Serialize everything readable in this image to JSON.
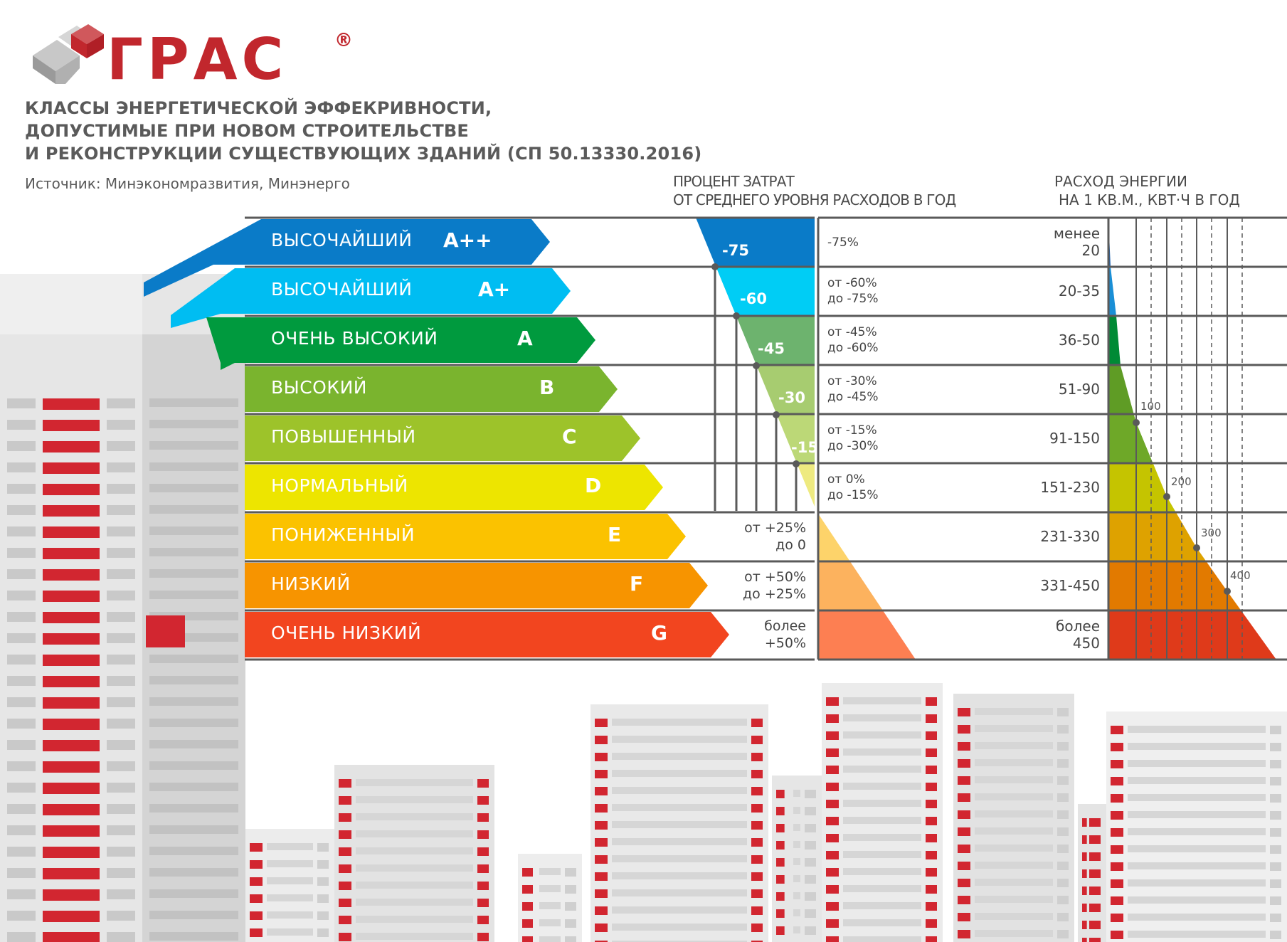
{
  "logo": {
    "text": "ГРАС",
    "registered": "®"
  },
  "title": {
    "lines": [
      "КЛАССЫ ЭНЕРГЕТИЧЕСКОЙ ЭФФЕКРИВНОСТИ,",
      "ДОПУСТИМЫЕ ПРИ НОВОМ СТРОИТЕЛЬСТВЕ",
      "И РЕКОНСТРУКЦИИ СУЩЕСТВУЮЩИХ ЗДАНИЙ (СП 50.13330.2016)"
    ],
    "source": "Источник: Минэкономразвития, Минэнерго"
  },
  "headers": {
    "percent": [
      "ПРОЦЕНТ ЗАТРАТ",
      "ОТ СРЕДНЕГО УРОВНЯ РАСХОДОВ В ГОД"
    ],
    "energy": [
      "РАСХОД ЭНЕРГИИ",
      "НА 1 КВ.М., КВТ·Ч В ГОД"
    ]
  },
  "rows": [
    {
      "label": "ВЫСОЧАЙШИЙ",
      "letter": "A++",
      "color": "#0a7bc8",
      "mid_color": "#0a7bc8",
      "chart_color": "#1b63b4",
      "pct": [
        "-75%"
      ],
      "value": [
        "менее",
        "20"
      ],
      "marker": "-75"
    },
    {
      "label": "ВЫСОЧАЙШИЙ",
      "letter": "A+",
      "color": "#00bdf2",
      "mid_color": "#00cdf5",
      "chart_color": "#1a8fd6",
      "pct": [
        "от -60%",
        "до -75%"
      ],
      "value": [
        "20-35"
      ],
      "marker": "-60"
    },
    {
      "label": "ОЧЕНЬ ВЫСОКИЙ",
      "letter": "A",
      "color": "#009a3e",
      "mid_color": "#6db36e",
      "chart_color": "#008a35",
      "pct": [
        "от -45%",
        "до -60%"
      ],
      "value": [
        "36-50"
      ],
      "marker": "-45"
    },
    {
      "label": "ВЫСОКИЙ",
      "letter": "B",
      "color": "#7ab42e",
      "mid_color": "#a7cc70",
      "chart_color": "#5f9c25",
      "pct": [
        "от -30%",
        "до -45%"
      ],
      "value": [
        "51-90"
      ],
      "marker": "-30"
    },
    {
      "label": "ПОВЫШЕННЫЙ",
      "letter": "C",
      "color": "#9dc32a",
      "mid_color": "#bcd877",
      "chart_color": "#6ea828",
      "pct": [
        "от -15%",
        "до -30%"
      ],
      "value": [
        "91-150"
      ],
      "marker": "-15"
    },
    {
      "label": "НОРМАЛЬНЫЙ",
      "letter": "D",
      "color": "#ede500",
      "mid_color": "#eeea80",
      "chart_color": "#c5c400",
      "pct": [
        "от 0%",
        "до -15%"
      ],
      "value": [
        "151-230"
      ]
    },
    {
      "label": "ПОНИЖЕННЫЙ",
      "letter": "E",
      "color": "#fbc200",
      "mid_color": "#fdd36a",
      "chart_color": "#dea200",
      "mid_text": [
        "от +25%",
        "до 0"
      ],
      "value": [
        "231-330"
      ]
    },
    {
      "label": "НИЗКИЙ",
      "letter": "F",
      "color": "#f79400",
      "mid_color": "#fcb25e",
      "chart_color": "#e27a00",
      "mid_text": [
        "от +50%",
        "до +25%"
      ],
      "value": [
        "331-450"
      ]
    },
    {
      "label": "ОЧЕНЬ НИЗКИЙ",
      "letter": "G",
      "color": "#f2451f",
      "mid_color": "#fd7f52",
      "chart_color": "#df3a1a",
      "mid_text": [
        "более",
        "+50%"
      ],
      "value": [
        "более",
        "450"
      ]
    }
  ],
  "energy_ticks": [
    "100",
    "200",
    "300",
    "400"
  ]
}
